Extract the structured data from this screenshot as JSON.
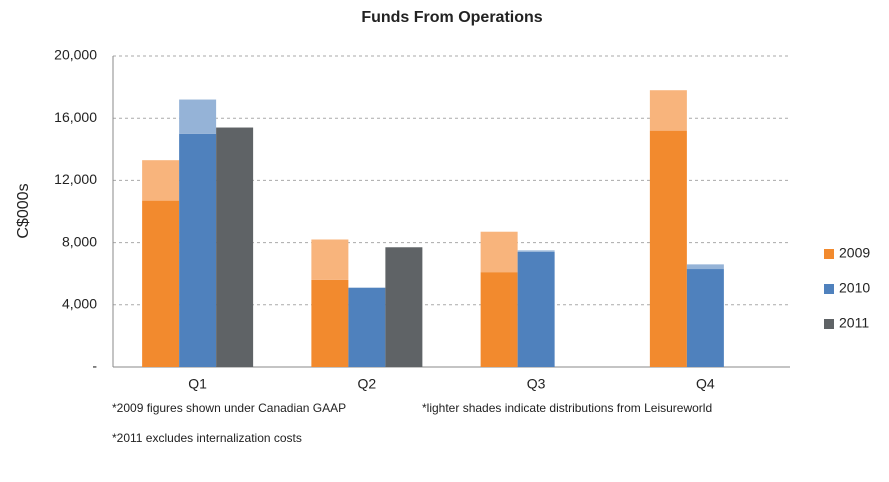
{
  "chart_data": {
    "type": "bar",
    "title": "Funds From Operations",
    "y_label": "C$000s",
    "categories": [
      "Q1",
      "Q2",
      "Q3",
      "Q4"
    ],
    "series": [
      {
        "name": "2009",
        "color": "#f28a2e",
        "light_color": "#f8b47c",
        "values": [
          10700,
          5600,
          6100,
          15200
        ],
        "distributions": [
          2600,
          2600,
          2600,
          2600
        ]
      },
      {
        "name": "2010",
        "color": "#4f81bd",
        "light_color": "#95b3d7",
        "values": [
          15000,
          5100,
          7400,
          6300
        ],
        "distributions": [
          2200,
          null,
          100,
          300
        ]
      },
      {
        "name": "2011",
        "color": "#5f6366",
        "light_color": "#5f6366",
        "values": [
          15400,
          7700,
          null,
          null
        ],
        "distributions": [
          null,
          null,
          null,
          null
        ]
      }
    ],
    "ylim": [
      0,
      20000
    ],
    "yticks": [
      {
        "value": 0,
        "label": "-"
      },
      {
        "value": 4000,
        "label": "4,000"
      },
      {
        "value": 8000,
        "label": "8,000"
      },
      {
        "value": 12000,
        "label": "12,000"
      },
      {
        "value": 16000,
        "label": "16,000"
      },
      {
        "value": 20000,
        "label": "20,000"
      }
    ],
    "grid": true,
    "notes": [
      "*2009 figures shown under Canadian GAAP",
      "*lighter shades indicate distributions from Leisureworld",
      "*2011 excludes internalization costs"
    ]
  }
}
